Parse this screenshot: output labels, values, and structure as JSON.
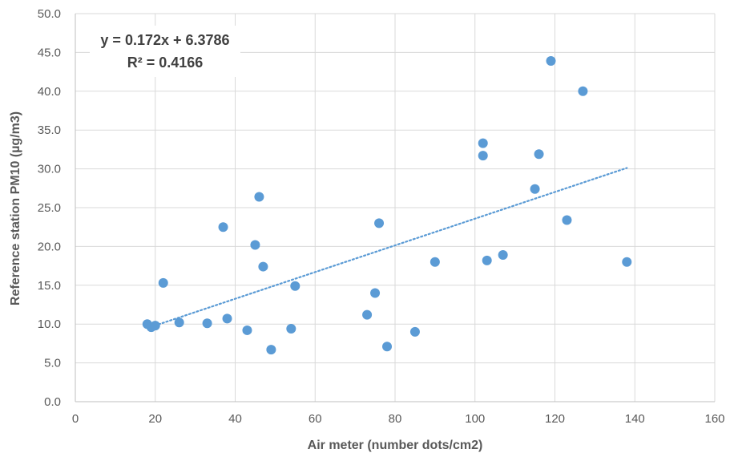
{
  "chart_data": {
    "type": "scatter",
    "title": "",
    "xlabel": "Air meter (number dots/cm2)",
    "ylabel": "Reference station PM10 (µg/m3)",
    "xlim": [
      0,
      160
    ],
    "ylim": [
      0,
      50
    ],
    "x_ticks": [
      "0",
      "20",
      "40",
      "60",
      "80",
      "100",
      "120",
      "140",
      "160"
    ],
    "y_ticks": [
      "0.0",
      "5.0",
      "10.0",
      "15.0",
      "20.0",
      "25.0",
      "30.0",
      "35.0",
      "40.0",
      "45.0",
      "50.0"
    ],
    "grid": true,
    "point_color": "#5b9bd5",
    "trendline_color": "#5b9bd5",
    "points": [
      {
        "x": 18,
        "y": 10.0
      },
      {
        "x": 19,
        "y": 9.6
      },
      {
        "x": 20,
        "y": 9.8
      },
      {
        "x": 22,
        "y": 15.3
      },
      {
        "x": 26,
        "y": 10.2
      },
      {
        "x": 33,
        "y": 10.1
      },
      {
        "x": 37,
        "y": 22.5
      },
      {
        "x": 38,
        "y": 10.7
      },
      {
        "x": 43,
        "y": 9.2
      },
      {
        "x": 45,
        "y": 20.2
      },
      {
        "x": 46,
        "y": 26.4
      },
      {
        "x": 47,
        "y": 17.4
      },
      {
        "x": 49,
        "y": 6.7
      },
      {
        "x": 54,
        "y": 9.4
      },
      {
        "x": 55,
        "y": 14.9
      },
      {
        "x": 73,
        "y": 11.2
      },
      {
        "x": 75,
        "y": 14.0
      },
      {
        "x": 76,
        "y": 23.0
      },
      {
        "x": 78,
        "y": 7.1
      },
      {
        "x": 85,
        "y": 9.0
      },
      {
        "x": 90,
        "y": 18.0
      },
      {
        "x": 102,
        "y": 33.3
      },
      {
        "x": 102,
        "y": 31.7
      },
      {
        "x": 103,
        "y": 18.2
      },
      {
        "x": 107,
        "y": 18.9
      },
      {
        "x": 115,
        "y": 27.4
      },
      {
        "x": 116,
        "y": 31.9
      },
      {
        "x": 119,
        "y": 43.9
      },
      {
        "x": 123,
        "y": 23.4
      },
      {
        "x": 127,
        "y": 40.0
      },
      {
        "x": 138,
        "y": 18.0
      }
    ],
    "trendline": {
      "slope": 0.172,
      "intercept": 6.3786,
      "x_range": [
        18,
        138
      ],
      "style": "dotted",
      "equation_text": "y = 0.172x + 6.3786",
      "r2_text": "R² = 0.4166"
    }
  }
}
